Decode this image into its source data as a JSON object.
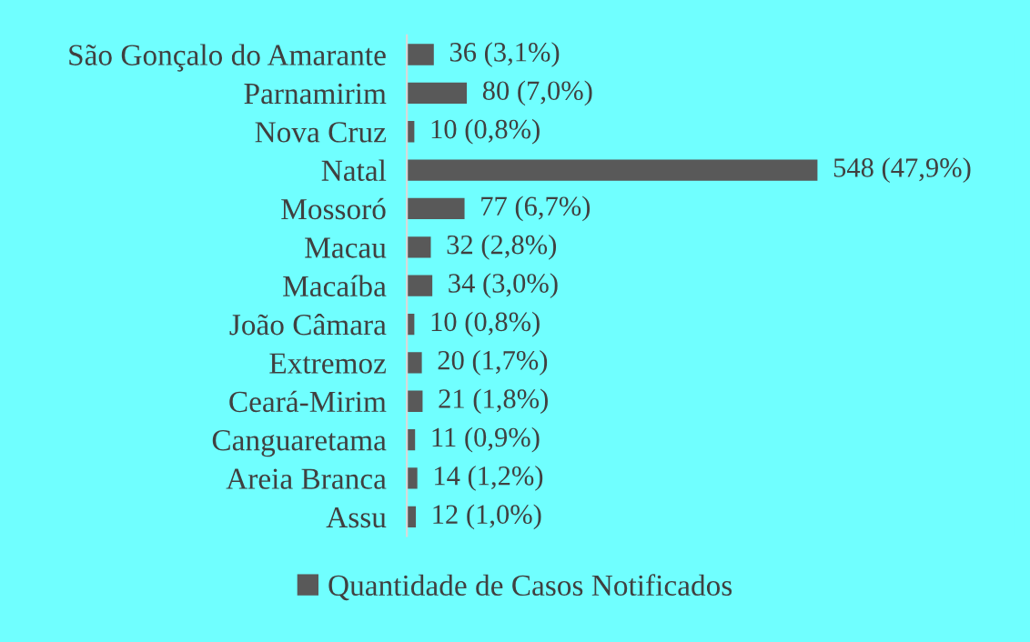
{
  "chart_data": {
    "type": "bar",
    "orientation": "horizontal",
    "categories": [
      "São Gonçalo do Amarante",
      "Parnamirim",
      "Nova Cruz",
      "Natal",
      "Mossoró",
      "Macau",
      "Macaíba",
      "João Câmara",
      "Extremoz",
      "Ceará-Mirim",
      "Canguaretama",
      "Areia Branca",
      "Assu"
    ],
    "series": [
      {
        "name": "Quantidade de Casos Notificados",
        "color": "#595959",
        "values": [
          36,
          80,
          10,
          548,
          77,
          32,
          34,
          10,
          20,
          21,
          11,
          14,
          12
        ],
        "value_labels": [
          "36 (3,1%)",
          "80 (7,0%)",
          "10 (0,8%)",
          "548 (47,9%)",
          "77 (6,7%)",
          "32 (2,8%)",
          "34 (3,0%)",
          "10 (0,8%)",
          "20 (1,7%)",
          "21 (1,8%)",
          "11 (0,9%)",
          "14 (1,2%)",
          "12 (1,0%)"
        ]
      }
    ],
    "legend": "bottom",
    "grid": false
  }
}
